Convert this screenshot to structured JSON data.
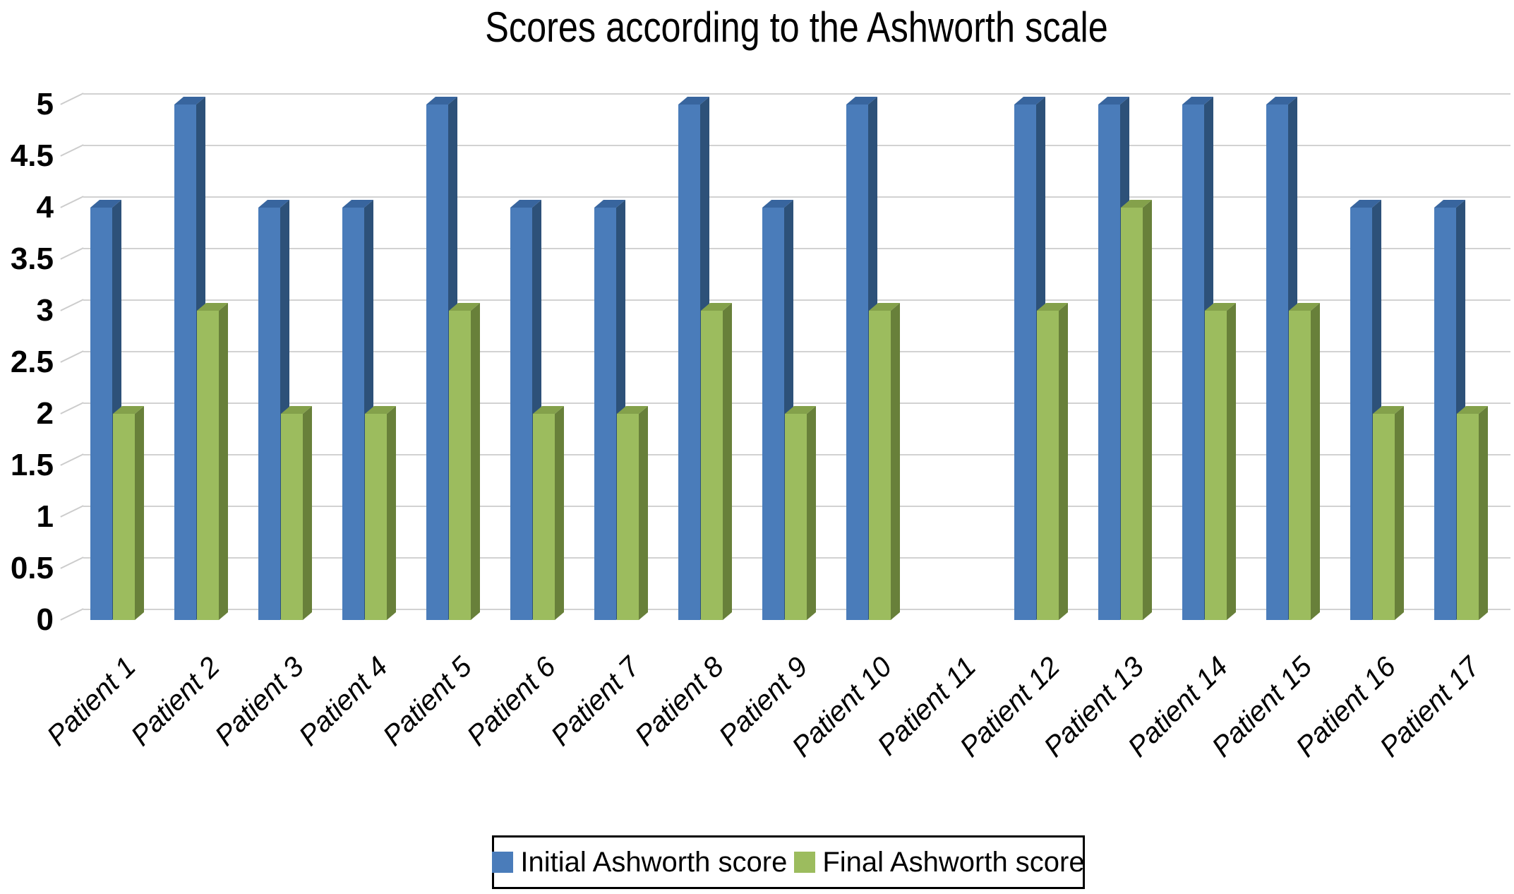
{
  "title": "Scores according to the Ashworth scale",
  "chart_data": {
    "type": "bar",
    "style_note": "3D beveled clustered columns, Excel-style",
    "title": "Scores according to the Ashworth scale",
    "xlabel": "",
    "ylabel": "",
    "ylim": [
      0,
      5
    ],
    "ytick_step": 0.5,
    "yticks": [
      "0",
      "0.5",
      "1",
      "1.5",
      "2",
      "2.5",
      "3",
      "3.5",
      "4",
      "4.5",
      "5"
    ],
    "grid": true,
    "legend_position": "bottom",
    "categories": [
      "Patient 1",
      "Patient 2",
      "Patient 3",
      "Patient 4",
      "Patient 5",
      "Patient 6",
      "Patient 7",
      "Patient 8",
      "Patient 9",
      "Patient 10",
      "Patient 11",
      "Patient 12",
      "Patient 13",
      "Patient 14",
      "Patient 15",
      "Patient 16",
      "Patient 17"
    ],
    "series": [
      {
        "name": "Initial Ashworth score",
        "color": "#4a7cba",
        "color_side": "#2d5179",
        "color_top": "#38659e",
        "values": [
          4,
          5,
          4,
          4,
          5,
          4,
          4,
          5,
          4,
          5,
          null,
          5,
          5,
          5,
          5,
          4,
          4
        ]
      },
      {
        "name": "Final Ashworth score",
        "color": "#9cbc5e",
        "color_side": "#68803a",
        "color_top": "#84a14b",
        "values": [
          2,
          3,
          2,
          2,
          3,
          2,
          2,
          3,
          2,
          3,
          null,
          3,
          4,
          3,
          3,
          2,
          2
        ]
      }
    ],
    "colors": {
      "gridline": "#d2d2d2",
      "background": "#ffffff",
      "text": "#000000"
    }
  }
}
